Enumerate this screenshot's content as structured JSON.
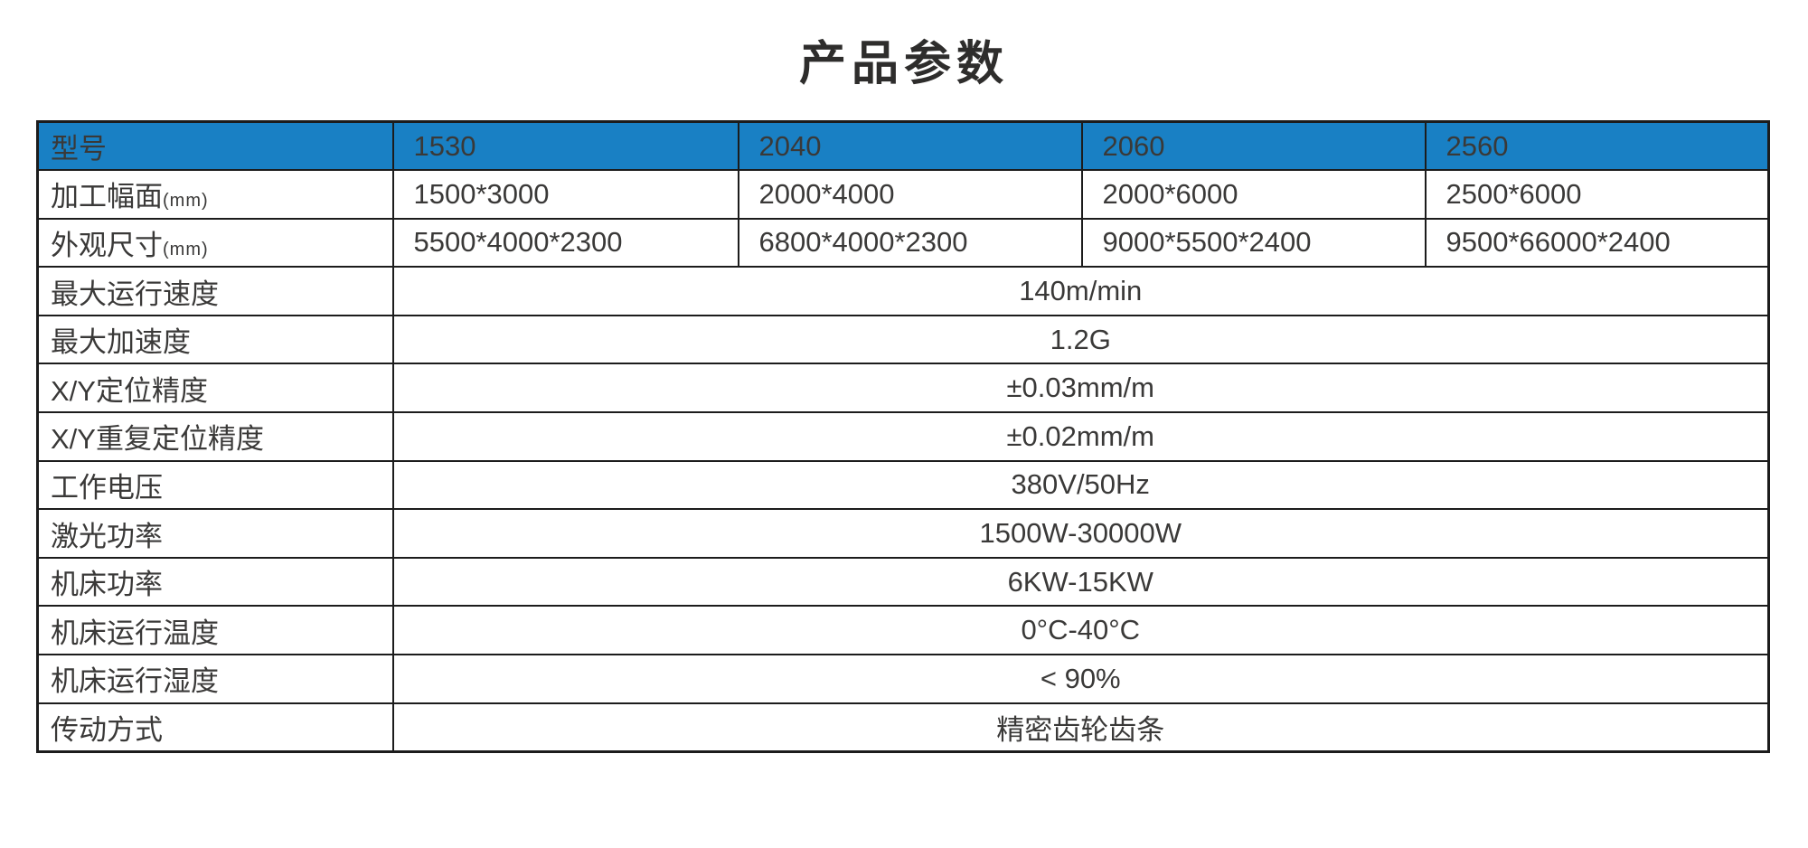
{
  "page": {
    "title": "产品参数"
  },
  "colors": {
    "header_bg": "#1980c4",
    "header_text": "#ffffff",
    "border": "#1c1c1c",
    "body_text": "#3a3938",
    "title_text": "#2e2d2c"
  },
  "table": {
    "header": {
      "label": "型号",
      "models": [
        "1530",
        "2040",
        "2060",
        "2560"
      ]
    },
    "multi_rows": [
      {
        "label": "加工幅面",
        "label_suffix": "(mm)",
        "values": [
          "1500*3000",
          "2000*4000",
          "2000*6000",
          "2500*6000"
        ]
      },
      {
        "label": "外观尺寸",
        "label_suffix": "(mm)",
        "values": [
          "5500*4000*2300",
          "6800*4000*2300",
          "9000*5500*2400",
          "9500*66000*2400"
        ]
      }
    ],
    "span_rows": [
      {
        "label": "最大运行速度",
        "value": "140m/min"
      },
      {
        "label": "最大加速度",
        "value": "1.2G"
      },
      {
        "label": "X/Y定位精度",
        "value": "±0.03mm/m"
      },
      {
        "label": "X/Y重复定位精度",
        "value": "±0.02mm/m"
      },
      {
        "label": "工作电压",
        "value": "380V/50Hz"
      },
      {
        "label": "激光功率",
        "value": "1500W-30000W"
      },
      {
        "label": "机床功率",
        "value": "6KW-15KW"
      },
      {
        "label": "机床运行温度",
        "value": "0°C-40°C"
      },
      {
        "label": "机床运行湿度",
        "value": "< 90%"
      },
      {
        "label": "传动方式",
        "value": "精密齿轮齿条"
      }
    ]
  }
}
